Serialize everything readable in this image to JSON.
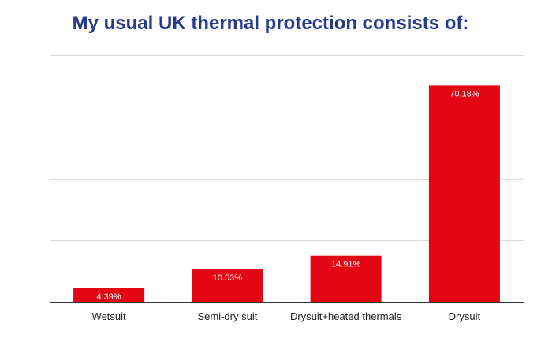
{
  "chart_data": {
    "type": "bar",
    "title": "My usual UK thermal protection consists of:",
    "categories": [
      "Wetsuit",
      "Semi-dry suit",
      "Drysuit+heated thermals",
      "Drysuit"
    ],
    "values": [
      4.39,
      10.53,
      14.91,
      70.18
    ],
    "data_labels": [
      "4.39%",
      "10.53%",
      "14.91%",
      "70.18%"
    ],
    "ylim": [
      0,
      80
    ],
    "grid": true,
    "legend": "none",
    "colors": {
      "bar": "#e30613",
      "title": "#253a8c",
      "grid": "#d9d9d9",
      "axis": "#333333",
      "data_label": "#ffffff",
      "tick_label": "#222222"
    }
  }
}
